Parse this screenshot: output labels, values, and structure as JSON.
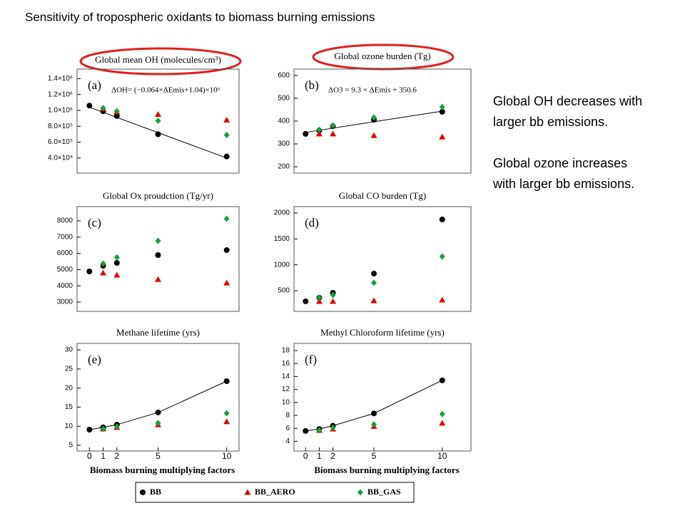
{
  "slide": {
    "title": "Sensitivity of tropospheric oxidants to biomass burning emissions",
    "notes": [
      [
        "Global OH decreases with",
        "larger bb emissions."
      ],
      [
        "Global ozone increases",
        "with larger bb emissions."
      ]
    ]
  },
  "chart_data": [
    {
      "type": "scatter",
      "title": "Global mean OH (molecules/cm³)",
      "panel_label": "(a)",
      "annotation": "ΔOH= (−0.064×ΔEmis+1.04)×10⁶",
      "x": [
        0,
        1,
        2,
        5,
        10
      ],
      "xlim": [
        -0.9,
        10.9
      ],
      "ylim": [
        210000,
        1520000
      ],
      "yticks": [
        {
          "value": 400000,
          "label": "4.0×10⁵"
        },
        {
          "value": 600000,
          "label": "6.0×10⁵"
        },
        {
          "value": 800000,
          "label": "8.0×10⁵"
        },
        {
          "value": 1000000,
          "label": "1.0×10⁶"
        },
        {
          "value": 1200000,
          "label": "1.2×10⁶"
        },
        {
          "value": 1400000,
          "label": "1.4×10⁶"
        }
      ],
      "fit": {
        "x": [
          0,
          10
        ],
        "values": [
          1040000,
          400000
        ]
      },
      "series": [
        {
          "name": "BB",
          "color": "#000000",
          "marker": "circle",
          "values": [
            1060000,
            990000,
            930000,
            700000,
            420000
          ]
        },
        {
          "name": "BB_AERO",
          "color": "#e00000",
          "marker": "triangle",
          "values": [
            null,
            1020000,
            980000,
            950000,
            880000
          ]
        },
        {
          "name": "BB_GAS",
          "color": "#1a9e3a",
          "marker": "diamond",
          "values": [
            null,
            1030000,
            990000,
            870000,
            690000
          ]
        }
      ]
    },
    {
      "type": "scatter",
      "title": "Global ozone burden (Tg)",
      "panel_label": "(b)",
      "annotation": "ΔO3 =  9.3 × ΔEmis + 350.6",
      "x": [
        0,
        1,
        2,
        5,
        10
      ],
      "xlim": [
        -0.85,
        12.1
      ],
      "ylim": [
        172,
        628
      ],
      "yticks": [
        200,
        300,
        400,
        500,
        600
      ],
      "fit": {
        "x": [
          0,
          10
        ],
        "values": [
          350.6,
          443.6
        ]
      },
      "series": [
        {
          "name": "BB",
          "color": "#000000",
          "marker": "circle",
          "values": [
            344,
            359,
            378,
            406,
            441
          ]
        },
        {
          "name": "BB_AERO",
          "color": "#e00000",
          "marker": "triangle",
          "values": [
            null,
            344,
            344,
            337,
            331
          ]
        },
        {
          "name": "BB_GAS",
          "color": "#1a9e3a",
          "marker": "diamond",
          "values": [
            null,
            362,
            381,
            416,
            462
          ]
        }
      ]
    },
    {
      "type": "scatter",
      "title": "Global Ox proudction  (Tg/yr)",
      "panel_label": "(c)",
      "x": [
        0,
        1,
        2,
        5,
        10
      ],
      "xlim": [
        -0.9,
        10.9
      ],
      "ylim": [
        2430,
        8877
      ],
      "yticks": [
        3000,
        4000,
        5000,
        6000,
        7000,
        8000
      ],
      "series": [
        {
          "name": "BB",
          "color": "#000000",
          "marker": "circle",
          "values": [
            4886,
            5237,
            5412,
            5895,
            6200
          ]
        },
        {
          "name": "BB_AERO",
          "color": "#e00000",
          "marker": "triangle",
          "values": [
            null,
            4800,
            4667,
            4400,
            4180
          ]
        },
        {
          "name": "BB_GAS",
          "color": "#1a9e3a",
          "marker": "diamond",
          "values": [
            null,
            5370,
            5760,
            6770,
            8130
          ]
        }
      ]
    },
    {
      "type": "scatter",
      "title": "Global CO burden (Tg)",
      "panel_label": "(d)",
      "x": [
        0,
        1,
        2,
        5,
        10
      ],
      "xlim": [
        -0.85,
        12.1
      ],
      "ylim": [
        101,
        2124
      ],
      "yticks": [
        500,
        1000,
        1500,
        2000
      ],
      "series": [
        {
          "name": "BB",
          "color": "#000000",
          "marker": "circle",
          "values": [
            294,
            363,
            459,
            830,
            1876
          ]
        },
        {
          "name": "BB_AERO",
          "color": "#e00000",
          "marker": "triangle",
          "values": [
            null,
            294,
            294,
            307,
            321
          ]
        },
        {
          "name": "BB_GAS",
          "color": "#1a9e3a",
          "marker": "diamond",
          "values": [
            null,
            363,
            418,
            652,
            1160
          ]
        }
      ]
    },
    {
      "type": "scatter",
      "title": "Methane lifetime  (yrs)",
      "panel_label": "(e)",
      "xlabel": "Biomass burning multiplying factors",
      "x": [
        0,
        1,
        2,
        5,
        10
      ],
      "xlim": [
        -0.9,
        10.9
      ],
      "xticks": [
        0,
        1,
        2,
        5,
        10
      ],
      "ylim": [
        3.5,
        31.7
      ],
      "yticks": [
        5,
        10,
        15,
        20,
        25,
        30
      ],
      "series": [
        {
          "name": "BB",
          "color": "#000000",
          "marker": "circle",
          "connect": true,
          "values": [
            9.1,
            9.7,
            10.4,
            13.6,
            21.8
          ]
        },
        {
          "name": "BB_AERO",
          "color": "#e00000",
          "marker": "triangle",
          "values": [
            null,
            9.3,
            9.7,
            10.4,
            11.2
          ]
        },
        {
          "name": "BB_GAS",
          "color": "#1a9e3a",
          "marker": "diamond",
          "values": [
            null,
            9.3,
            9.9,
            10.8,
            13.4
          ]
        }
      ]
    },
    {
      "type": "scatter",
      "title": "Methyl Chloroform lifetime  (yrs)",
      "panel_label": "(f)",
      "xlabel": "Biomass burning multiplying factors",
      "x": [
        0,
        1,
        2,
        5,
        10
      ],
      "xlim": [
        -0.85,
        12.1
      ],
      "xticks": [
        0,
        1,
        2,
        5,
        10
      ],
      "ylim": [
        2.5,
        19.1
      ],
      "yticks": [
        4,
        6,
        8,
        10,
        12,
        14,
        16,
        18
      ],
      "series": [
        {
          "name": "BB",
          "color": "#000000",
          "marker": "circle",
          "connect": true,
          "values": [
            5.6,
            5.9,
            6.4,
            8.3,
            13.4
          ]
        },
        {
          "name": "BB_AERO",
          "color": "#e00000",
          "marker": "triangle",
          "values": [
            null,
            5.7,
            5.9,
            6.3,
            6.8
          ]
        },
        {
          "name": "BB_GAS",
          "color": "#1a9e3a",
          "marker": "diamond",
          "values": [
            null,
            5.7,
            6.1,
            6.6,
            8.2
          ]
        }
      ]
    }
  ]
}
